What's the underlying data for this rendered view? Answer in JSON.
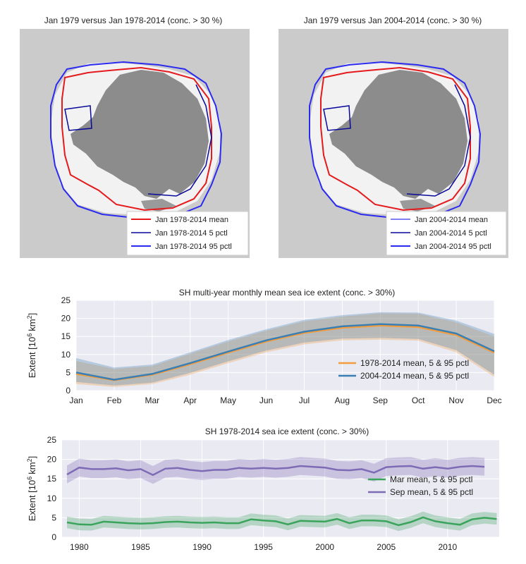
{
  "maps": [
    {
      "title": "Jan 1979 versus Jan 1978-2014 (conc. > 30 %)",
      "legend": [
        {
          "label": "Jan 1978-2014 mean",
          "color": "#e41a1c"
        },
        {
          "label": "Jan 1978-2014 5 pctl",
          "color": "#08089a"
        },
        {
          "label": "Jan 1978-2014 95 pctl",
          "color": "#2b2bf0"
        }
      ]
    },
    {
      "title": "Jan 1979 versus Jan 2004-2014 (conc. > 30 %)",
      "legend": [
        {
          "label": "Jan 2004-2014 mean",
          "color": "#8080f0"
        },
        {
          "label": "Jan 2004-2014 5 pctl",
          "color": "#08089a"
        },
        {
          "label": "Jan 2004-2014 95 pctl",
          "color": "#2b2bf0"
        }
      ]
    }
  ],
  "colors": {
    "map_bg": "#cbcbcb",
    "land": "#8c8c8c",
    "ice": "#f2f2f2",
    "plot_bg": "#eaeaf2",
    "grid": "#ffffff",
    "orange": "#f39c3d",
    "blue": "#3a7fb4",
    "green": "#3aa35c",
    "purple": "#7d6bb5"
  },
  "chart_data": [
    {
      "type": "line",
      "title": "SH multi-year monthly mean sea ice extent (conc. > 30%)",
      "ylabel_main": "Extent [10",
      "ylabel_sup": "6",
      "ylabel_unit": "km",
      "ylabel_sup2": "2",
      "ylabel_end": "]",
      "categories": [
        "Jan",
        "Feb",
        "Mar",
        "Apr",
        "May",
        "Jun",
        "Jul",
        "Aug",
        "Sep",
        "Oct",
        "Nov",
        "Dec"
      ],
      "ylim": [
        0,
        25
      ],
      "yticks": [
        0,
        5,
        10,
        15,
        20,
        25
      ],
      "legend_position": "lower-right",
      "series": [
        {
          "name": "1978-2014 mean, 5 & 95 pctl",
          "color": "#f39c3d",
          "mean": [
            4.6,
            2.9,
            4.4,
            7.3,
            10.5,
            13.6,
            16.0,
            17.4,
            18.0,
            17.6,
            15.4,
            10.5
          ],
          "p5": [
            1.8,
            1.0,
            1.8,
            4.4,
            7.6,
            10.6,
            12.8,
            13.9,
            14.1,
            13.8,
            10.6,
            3.8
          ],
          "p95": [
            8.2,
            6.0,
            6.8,
            10.2,
            13.6,
            16.6,
            19.2,
            20.5,
            21.4,
            21.3,
            18.9,
            15.0
          ]
        },
        {
          "name": "2004-2014 mean, 5 & 95 pctl",
          "color": "#3a7fb4",
          "mean": [
            5.0,
            3.0,
            4.6,
            7.6,
            10.8,
            13.9,
            16.3,
            17.8,
            18.4,
            18.0,
            15.8,
            10.9
          ],
          "p5": [
            2.4,
            1.4,
            2.2,
            4.9,
            8.1,
            11.1,
            13.3,
            14.4,
            14.6,
            14.3,
            11.2,
            4.4
          ],
          "p95": [
            9.0,
            6.4,
            7.2,
            10.6,
            14.0,
            17.0,
            19.6,
            20.9,
            21.7,
            21.6,
            19.4,
            15.7
          ]
        }
      ]
    },
    {
      "type": "line",
      "title": "SH 1978-2014 sea ice extent (conc. > 30%)",
      "ylabel_main": "Extent [10",
      "ylabel_sup": "6",
      "ylabel_unit": "km",
      "ylabel_sup2": "2",
      "ylabel_end": "]",
      "xlim": [
        1978.6,
        2014.2
      ],
      "ylim": [
        0,
        25
      ],
      "yticks": [
        0,
        5,
        10,
        15,
        20,
        25
      ],
      "xticks": [
        1980,
        1985,
        1990,
        1995,
        2000,
        2005,
        2010
      ],
      "legend_position": "center-right",
      "series": [
        {
          "name": "Sep mean, 5 & 95 pctl",
          "color": "#7d6bb5",
          "x": [
            1979,
            1980,
            1981,
            1982,
            1983,
            1984,
            1985,
            1986,
            1987,
            1988,
            1989,
            1990,
            1991,
            1992,
            1993,
            1994,
            1995,
            1996,
            1997,
            1998,
            1999,
            2000,
            2001,
            2002,
            2003,
            2004,
            2005,
            2006,
            2007,
            2008,
            2009,
            2010,
            2011,
            2012,
            2013
          ],
          "mean": [
            16.1,
            17.9,
            17.5,
            17.5,
            17.7,
            17.2,
            17.5,
            16.0,
            17.6,
            17.8,
            17.3,
            17.0,
            17.3,
            17.3,
            17.8,
            17.6,
            17.8,
            17.6,
            17.8,
            18.3,
            18.1,
            17.9,
            17.3,
            17.2,
            17.5,
            16.6,
            18.0,
            18.2,
            18.3,
            17.6,
            18.0,
            17.6,
            18.1,
            18.3,
            18.1
          ],
          "spread": 2.3
        },
        {
          "name": "Mar mean, 5 & 95 pctl",
          "color": "#3aa35c",
          "x": [
            1979,
            1980,
            1981,
            1982,
            1983,
            1984,
            1985,
            1986,
            1987,
            1988,
            1989,
            1990,
            1991,
            1992,
            1993,
            1994,
            1995,
            1996,
            1997,
            1998,
            1999,
            2000,
            2001,
            2002,
            2003,
            2004,
            2005,
            2006,
            2007,
            2008,
            2009,
            2010,
            2011,
            2012,
            2013,
            2014
          ],
          "mean": [
            3.8,
            3.3,
            3.2,
            4.0,
            3.8,
            3.6,
            3.5,
            3.6,
            3.9,
            4.0,
            3.8,
            3.7,
            3.8,
            3.6,
            3.6,
            4.6,
            4.3,
            4.1,
            3.3,
            4.2,
            4.1,
            4.0,
            4.7,
            3.6,
            4.3,
            4.3,
            4.1,
            3.1,
            3.9,
            5.1,
            4.1,
            3.6,
            3.2,
            4.6,
            5.0,
            4.7
          ],
          "spread": 1.5
        }
      ]
    }
  ]
}
